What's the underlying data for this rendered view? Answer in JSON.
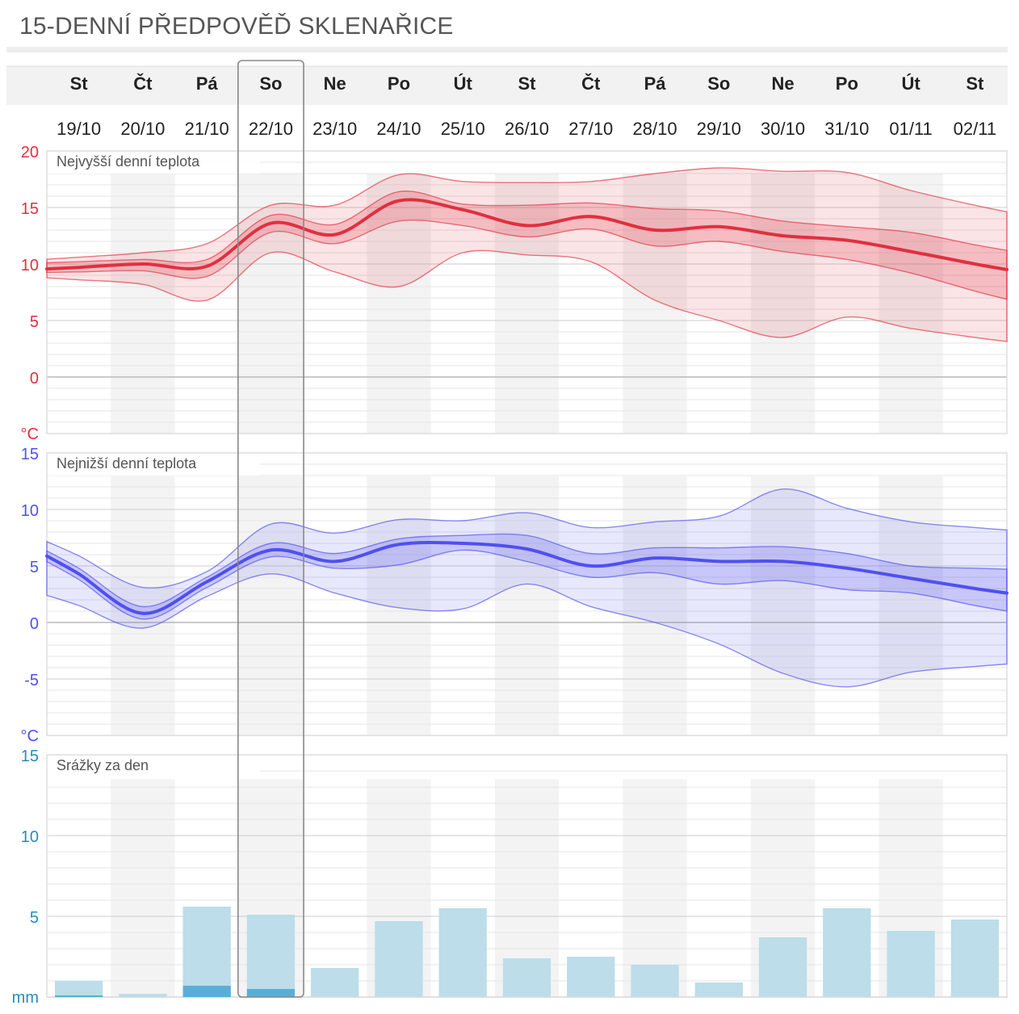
{
  "title": "15-DENNÍ PŘEDPOVĚĎ SKLENAŘICE",
  "days": [
    {
      "dow": "St",
      "date": "19/10"
    },
    {
      "dow": "Čt",
      "date": "20/10"
    },
    {
      "dow": "Pá",
      "date": "21/10"
    },
    {
      "dow": "So",
      "date": "22/10"
    },
    {
      "dow": "Ne",
      "date": "23/10"
    },
    {
      "dow": "Po",
      "date": "24/10"
    },
    {
      "dow": "Út",
      "date": "25/10"
    },
    {
      "dow": "St",
      "date": "26/10"
    },
    {
      "dow": "Čt",
      "date": "27/10"
    },
    {
      "dow": "Pá",
      "date": "28/10"
    },
    {
      "dow": "So",
      "date": "29/10"
    },
    {
      "dow": "Ne",
      "date": "30/10"
    },
    {
      "dow": "Po",
      "date": "31/10"
    },
    {
      "dow": "Út",
      "date": "01/11"
    },
    {
      "dow": "St",
      "date": "02/11"
    }
  ],
  "selected_day_index": 3,
  "chart_data": [
    {
      "type": "area",
      "title": "Nejvyšší denní teplota",
      "unit": "°C",
      "ylim": [
        -5,
        20
      ],
      "ytick_labels": [
        20,
        15,
        10,
        5,
        0
      ],
      "color": "#e03040",
      "x": [
        "19/10",
        "20/10",
        "21/10",
        "22/10",
        "23/10",
        "24/10",
        "25/10",
        "26/10",
        "27/10",
        "28/10",
        "29/10",
        "30/10",
        "31/10",
        "01/11",
        "02/11"
      ],
      "series": [
        {
          "role": "median",
          "values": [
            9.7,
            10.0,
            9.8,
            13.6,
            12.6,
            15.6,
            14.8,
            13.4,
            14.2,
            13.0,
            13.3,
            12.5,
            12.1,
            11.1,
            10.0
          ]
        },
        {
          "role": "p25",
          "values": [
            9.3,
            9.4,
            8.9,
            12.8,
            11.8,
            13.8,
            13.4,
            12.4,
            13.1,
            11.6,
            12.0,
            11.1,
            10.4,
            9.2,
            7.6
          ]
        },
        {
          "role": "p75",
          "values": [
            10.2,
            10.4,
            10.4,
            14.3,
            13.5,
            16.4,
            15.3,
            15.2,
            15.4,
            14.9,
            14.7,
            13.8,
            13.3,
            12.8,
            11.7
          ]
        },
        {
          "role": "min",
          "values": [
            8.6,
            8.2,
            6.8,
            11.0,
            9.3,
            8.0,
            11.0,
            10.8,
            10.2,
            6.8,
            5.0,
            3.5,
            5.3,
            4.3,
            3.5
          ]
        },
        {
          "role": "max",
          "values": [
            10.6,
            11.0,
            11.8,
            15.2,
            15.2,
            17.9,
            17.3,
            17.2,
            17.3,
            18.0,
            18.5,
            18.2,
            18.1,
            16.5,
            15.2
          ]
        }
      ]
    },
    {
      "type": "area",
      "title": "Nejnižší denní teplota",
      "unit": "°C",
      "ylim": [
        -10,
        15
      ],
      "ytick_labels": [
        15,
        10,
        5,
        0,
        -5
      ],
      "color": "#5050f0",
      "x": [
        "19/10",
        "20/10",
        "21/10",
        "22/10",
        "23/10",
        "24/10",
        "25/10",
        "26/10",
        "27/10",
        "28/10",
        "29/10",
        "30/10",
        "31/10",
        "01/11",
        "02/11"
      ],
      "series": [
        {
          "role": "median",
          "values": [
            4.3,
            0.8,
            3.6,
            6.4,
            5.4,
            6.9,
            7.0,
            6.5,
            5.0,
            5.7,
            5.4,
            5.4,
            4.8,
            3.9,
            3.0
          ]
        },
        {
          "role": "p25",
          "values": [
            3.8,
            0.3,
            3.1,
            5.8,
            4.8,
            5.1,
            6.4,
            5.4,
            4.0,
            4.4,
            3.4,
            3.7,
            2.9,
            2.6,
            1.5
          ]
        },
        {
          "role": "p75",
          "values": [
            4.8,
            1.4,
            4.0,
            7.0,
            6.1,
            7.4,
            7.7,
            7.7,
            6.1,
            6.6,
            6.6,
            6.7,
            6.1,
            5.0,
            4.8
          ]
        },
        {
          "role": "min",
          "values": [
            1.5,
            -0.5,
            2.3,
            4.3,
            2.6,
            1.3,
            1.2,
            3.4,
            1.4,
            0.0,
            -1.9,
            -4.5,
            -5.7,
            -4.4,
            -3.9
          ]
        },
        {
          "role": "max",
          "values": [
            5.9,
            3.1,
            4.5,
            8.7,
            7.9,
            9.1,
            9.0,
            9.7,
            8.4,
            8.9,
            9.4,
            11.8,
            10.1,
            8.9,
            8.4
          ]
        }
      ]
    },
    {
      "type": "bar",
      "title": "Srážky za den",
      "unit": "mm",
      "ylim": [
        0,
        15
      ],
      "ytick_labels": [
        15,
        10,
        5
      ],
      "color": "#b8dce8",
      "categories": [
        "19/10",
        "20/10",
        "21/10",
        "22/10",
        "23/10",
        "24/10",
        "25/10",
        "26/10",
        "27/10",
        "28/10",
        "29/10",
        "30/10",
        "31/10",
        "01/11",
        "02/11"
      ],
      "series": [
        {
          "role": "max",
          "values": [
            1.0,
            0.2,
            5.6,
            5.1,
            1.8,
            4.7,
            5.5,
            2.4,
            2.5,
            2.0,
            0.9,
            3.7,
            5.5,
            4.1,
            4.8
          ]
        },
        {
          "role": "expected",
          "values": [
            0.1,
            0.0,
            0.7,
            0.5,
            0.0,
            0.0,
            0.0,
            0.0,
            0.0,
            0.0,
            0.0,
            0.0,
            0.0,
            0.0,
            0.0
          ]
        }
      ]
    }
  ]
}
